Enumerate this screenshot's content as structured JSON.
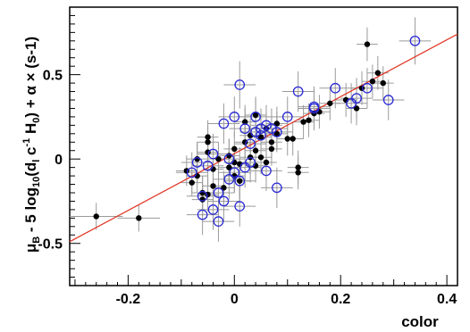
{
  "chart_data": {
    "type": "scatter",
    "xlabel": "color",
    "ylabel": "μB - 5 log10(dl c-1 H0) + α × (s-1)",
    "ylabel_parts": {
      "mu": "μ",
      "mu_sub": "B",
      "part1": " - 5 log",
      "log_sub": "10",
      "part2": "(d",
      "d_sub": "l",
      "part3": " c",
      "c_sup": "-1",
      "part4": " H",
      "h_sub": "0",
      "part5": ") + α × (s-1)"
    },
    "xlim": [
      -0.31,
      0.42
    ],
    "ylim": [
      -0.75,
      0.9
    ],
    "x_ticks": [
      -0.2,
      0,
      0.2,
      0.4
    ],
    "x_tick_labels": [
      "-0.2",
      "0",
      "0.2",
      "0.4"
    ],
    "y_ticks": [
      -0.5,
      0,
      0.5
    ],
    "y_tick_labels": [
      "-0.5",
      "0",
      "0.5"
    ],
    "grid": false,
    "legend": "none",
    "colors": {
      "filled": "#000000",
      "open": "#2a2ad6",
      "errorbar": "#9a9a9a",
      "fit": "#e03020"
    },
    "fit_line": {
      "x": [
        -0.31,
        0.42
      ],
      "y": [
        -0.49,
        0.74
      ]
    },
    "series": [
      {
        "marker": "filled",
        "points": [
          [
            -0.26,
            -0.34,
            0.05,
            0.08
          ],
          [
            -0.18,
            -0.35,
            0.04,
            0.08
          ],
          [
            -0.09,
            -0.07,
            0.02,
            0.09
          ],
          [
            -0.08,
            -0.14,
            0.02,
            0.08
          ],
          [
            -0.07,
            -0.1,
            0.02,
            0.1
          ],
          [
            -0.07,
            0.0,
            0.02,
            0.1
          ],
          [
            -0.06,
            -0.2,
            0.02,
            0.1
          ],
          [
            -0.06,
            -0.24,
            0.02,
            0.1
          ],
          [
            -0.05,
            -0.21,
            0.02,
            0.1
          ],
          [
            -0.05,
            0.04,
            0.02,
            0.12
          ],
          [
            -0.05,
            0.1,
            0.02,
            0.1
          ],
          [
            -0.05,
            0.13,
            0.02,
            0.1
          ],
          [
            -0.04,
            -0.06,
            0.02,
            0.1
          ],
          [
            -0.04,
            -0.16,
            0.02,
            0.1
          ],
          [
            -0.03,
            0.0,
            0.02,
            0.1
          ],
          [
            -0.02,
            -0.17,
            0.02,
            0.1
          ],
          [
            -0.01,
            -0.05,
            0.02,
            0.1
          ],
          [
            -0.01,
            0.02,
            0.02,
            0.1
          ],
          [
            0.0,
            -0.02,
            0.02,
            0.1
          ],
          [
            0.0,
            -0.1,
            0.02,
            0.1
          ],
          [
            0.0,
            0.06,
            0.02,
            0.1
          ],
          [
            0.01,
            -0.03,
            0.02,
            0.1
          ],
          [
            0.01,
            -0.13,
            0.02,
            0.1
          ],
          [
            0.02,
            0.1,
            0.02,
            0.1
          ],
          [
            0.02,
            0.22,
            0.02,
            0.1
          ],
          [
            0.03,
            0.01,
            0.02,
            0.1
          ],
          [
            0.03,
            0.14,
            0.02,
            0.1
          ],
          [
            0.04,
            0.05,
            0.02,
            0.1
          ],
          [
            0.04,
            -0.04,
            0.02,
            0.1
          ],
          [
            0.04,
            0.26,
            0.02,
            0.1
          ],
          [
            0.05,
            0.01,
            0.02,
            0.1
          ],
          [
            0.05,
            0.13,
            0.02,
            0.1
          ],
          [
            0.06,
            -0.02,
            0.02,
            0.1
          ],
          [
            0.06,
            0.18,
            0.02,
            0.1
          ],
          [
            0.07,
            0.1,
            0.02,
            0.1
          ],
          [
            0.07,
            0.06,
            0.02,
            0.1
          ],
          [
            0.08,
            0.15,
            0.02,
            0.1
          ],
          [
            0.08,
            0.21,
            0.02,
            0.1
          ],
          [
            0.1,
            0.12,
            0.02,
            0.1
          ],
          [
            0.11,
            0.12,
            0.02,
            0.1
          ],
          [
            0.12,
            -0.05,
            0.02,
            0.1
          ],
          [
            0.12,
            -0.08,
            0.02,
            0.1
          ],
          [
            0.13,
            0.22,
            0.02,
            0.1
          ],
          [
            0.14,
            0.23,
            0.02,
            0.1
          ],
          [
            0.15,
            0.27,
            0.02,
            0.1
          ],
          [
            0.16,
            0.28,
            0.02,
            0.1
          ],
          [
            0.18,
            0.33,
            0.02,
            0.1
          ],
          [
            0.21,
            0.35,
            0.02,
            0.1
          ],
          [
            0.23,
            0.3,
            0.02,
            0.1
          ],
          [
            0.24,
            0.42,
            0.02,
            0.1
          ],
          [
            0.25,
            0.68,
            0.02,
            0.1
          ],
          [
            0.26,
            0.46,
            0.02,
            0.1
          ],
          [
            0.27,
            0.51,
            0.02,
            0.1
          ],
          [
            0.28,
            0.45,
            0.02,
            0.1
          ]
        ]
      },
      {
        "marker": "open",
        "points": [
          [
            -0.08,
            -0.08,
            0.03,
            0.12
          ],
          [
            -0.07,
            -0.02,
            0.03,
            0.12
          ],
          [
            -0.06,
            -0.22,
            0.03,
            0.12
          ],
          [
            -0.06,
            -0.33,
            0.03,
            0.12
          ],
          [
            -0.05,
            -0.04,
            0.03,
            0.12
          ],
          [
            -0.04,
            0.03,
            0.03,
            0.12
          ],
          [
            -0.04,
            -0.3,
            0.03,
            0.12
          ],
          [
            -0.03,
            -0.37,
            0.03,
            0.12
          ],
          [
            -0.03,
            -0.2,
            0.03,
            0.12
          ],
          [
            -0.02,
            0.21,
            0.03,
            0.12
          ],
          [
            -0.02,
            -0.25,
            0.03,
            0.12
          ],
          [
            -0.01,
            -0.12,
            0.03,
            0.12
          ],
          [
            -0.01,
            0.0,
            0.03,
            0.12
          ],
          [
            0.0,
            0.25,
            0.03,
            0.12
          ],
          [
            0.0,
            -0.08,
            0.03,
            0.12
          ],
          [
            0.01,
            0.44,
            0.03,
            0.14
          ],
          [
            0.01,
            -0.13,
            0.03,
            0.12
          ],
          [
            0.01,
            -0.28,
            0.03,
            0.12
          ],
          [
            0.02,
            0.18,
            0.03,
            0.12
          ],
          [
            0.02,
            -0.05,
            0.03,
            0.12
          ],
          [
            0.03,
            0.09,
            0.03,
            0.12
          ],
          [
            0.03,
            -0.02,
            0.03,
            0.12
          ],
          [
            0.04,
            0.16,
            0.03,
            0.12
          ],
          [
            0.04,
            0.25,
            0.03,
            0.12
          ],
          [
            0.05,
            0.14,
            0.03,
            0.12
          ],
          [
            0.05,
            0.18,
            0.03,
            0.12
          ],
          [
            0.06,
            0.2,
            0.03,
            0.12
          ],
          [
            0.06,
            -0.07,
            0.03,
            0.12
          ],
          [
            0.07,
            0.18,
            0.03,
            0.12
          ],
          [
            0.08,
            0.16,
            0.03,
            0.12
          ],
          [
            0.08,
            -0.17,
            0.03,
            0.12
          ],
          [
            0.1,
            0.25,
            0.03,
            0.12
          ],
          [
            0.12,
            0.4,
            0.03,
            0.12
          ],
          [
            0.15,
            0.3,
            0.03,
            0.12
          ],
          [
            0.15,
            0.31,
            0.03,
            0.12
          ],
          [
            0.19,
            0.42,
            0.03,
            0.12
          ],
          [
            0.22,
            0.33,
            0.03,
            0.12
          ],
          [
            0.23,
            0.36,
            0.03,
            0.12
          ],
          [
            0.25,
            0.42,
            0.03,
            0.12
          ],
          [
            0.29,
            0.35,
            0.03,
            0.12
          ],
          [
            0.34,
            0.7,
            0.03,
            0.14
          ]
        ]
      }
    ]
  }
}
